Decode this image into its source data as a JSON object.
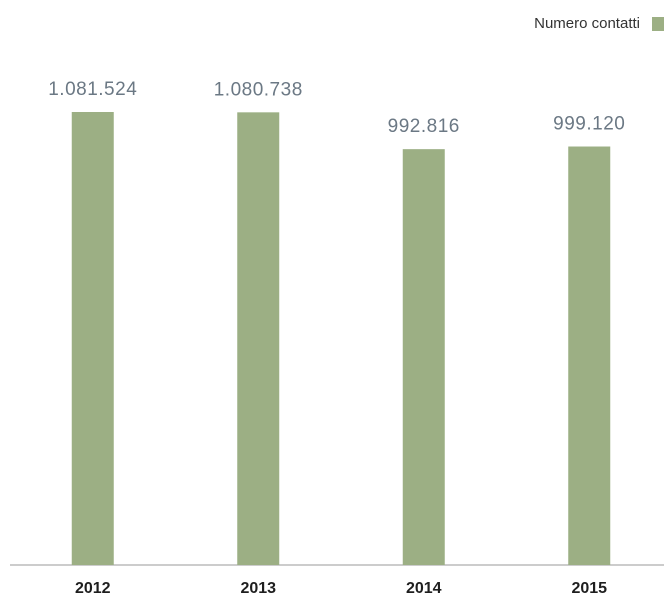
{
  "chart_data": {
    "type": "bar",
    "legend": "Numero contatti",
    "legend_position": "top-right",
    "categories": [
      "2012",
      "2013",
      "2014",
      "2015"
    ],
    "values": [
      1081524,
      1080738,
      992816,
      999120
    ],
    "value_labels": [
      "1.081.524",
      "1.080.738",
      "992.816",
      "999.120"
    ],
    "color": "#9caf84"
  }
}
